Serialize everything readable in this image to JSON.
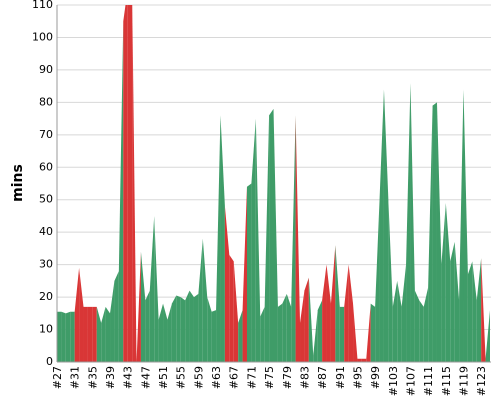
{
  "chart_data": {
    "type": "area",
    "ylabel": "mins",
    "categories": [
      "#27",
      null,
      null,
      null,
      "#31",
      null,
      null,
      null,
      "#35",
      null,
      null,
      null,
      "#39",
      null,
      null,
      null,
      "#43",
      null,
      null,
      null,
      "#47",
      null,
      null,
      null,
      "#51",
      null,
      null,
      null,
      "#55",
      null,
      null,
      null,
      "#59",
      null,
      null,
      null,
      "#63",
      null,
      null,
      null,
      "#67",
      null,
      null,
      null,
      "#71",
      null,
      null,
      null,
      "#75",
      null,
      null,
      null,
      "#79",
      null,
      null,
      null,
      "#83",
      null,
      null,
      null,
      "#87",
      null,
      null,
      null,
      "#91",
      null,
      null,
      null,
      "#95",
      null,
      null,
      null,
      "#99",
      null,
      null,
      null,
      "#103",
      null,
      null,
      null,
      "#107",
      null,
      null,
      null,
      "#111",
      null,
      null,
      null,
      "#115",
      null,
      null,
      null,
      "#119",
      null,
      null,
      null,
      "#123",
      null,
      null
    ],
    "values": [
      15.5,
      15.5,
      15,
      15.5,
      15.5,
      29,
      17,
      17,
      17,
      17,
      12,
      17,
      15,
      25,
      28,
      105,
      115,
      115,
      0,
      34,
      19,
      22,
      45,
      13,
      18,
      13,
      18,
      20.5,
      20,
      19,
      22,
      20,
      21,
      38,
      20,
      15.5,
      16,
      76,
      48,
      33,
      31,
      12,
      16,
      54,
      55,
      75,
      14,
      17,
      76,
      78,
      17,
      18,
      21,
      17,
      76,
      12,
      22,
      26,
      2,
      16,
      19,
      30,
      18,
      36,
      17,
      17,
      30,
      18,
      1,
      1,
      1,
      18,
      17,
      50,
      84,
      50,
      17,
      25,
      17,
      30,
      86,
      22,
      19,
      17,
      23,
      79,
      80,
      30,
      49,
      31,
      37,
      19,
      84,
      27,
      31,
      19,
      32,
      1,
      16
    ],
    "colors": [
      "#3f9c68",
      "#3f9c68",
      "#3f9c68",
      "#3f9c68",
      "#3f9c68",
      "#d93636",
      "#d93636",
      "#d93636",
      "#d93636",
      "#d93636",
      "#3f9c68",
      "#3f9c68",
      "#3f9c68",
      "#3f9c68",
      "#3f9c68",
      "#3f9c68",
      "#d93636",
      "#d93636",
      "#d93636",
      "#d93636",
      "#3f9c68",
      "#3f9c68",
      "#3f9c68",
      "#3f9c68",
      "#3f9c68",
      "#3f9c68",
      "#3f9c68",
      "#3f9c68",
      "#3f9c68",
      "#3f9c68",
      "#3f9c68",
      "#3f9c68",
      "#3f9c68",
      "#3f9c68",
      "#3f9c68",
      "#3f9c68",
      "#3f9c68",
      "#3f9c68",
      "#3f9c68",
      "#d93636",
      "#d93636",
      "#d93636",
      "#3f9c68",
      "#d93636",
      "#3f9c68",
      "#3f9c68",
      "#3f9c68",
      "#3f9c68",
      "#3f9c68",
      "#3f9c68",
      "#3f9c68",
      "#3f9c68",
      "#3f9c68",
      "#3f9c68",
      "#3f9c68",
      "#d93636",
      "#d93636",
      "#d93636",
      "#3f9c68",
      "#3f9c68",
      "#3f9c68",
      "#d93636",
      "#d93636",
      "#d93636",
      "#3f9c68",
      "#3f9c68",
      "#d93636",
      "#d93636",
      "#d93636",
      "#d93636",
      "#d93636",
      "#d93636",
      "#3f9c68",
      "#3f9c68",
      "#3f9c68",
      "#3f9c68",
      "#3f9c68",
      "#3f9c68",
      "#3f9c68",
      "#3f9c68",
      "#3f9c68",
      "#3f9c68",
      "#3f9c68",
      "#3f9c68",
      "#3f9c68",
      "#3f9c68",
      "#3f9c68",
      "#3f9c68",
      "#3f9c68",
      "#3f9c68",
      "#3f9c68",
      "#3f9c68",
      "#3f9c68",
      "#3f9c68",
      "#3f9c68",
      "#3f9c68",
      "#3f9c68",
      "#d93636",
      "#3f9c68"
    ],
    "ylim": [
      0,
      110
    ],
    "yticks": [
      0,
      10,
      20,
      30,
      40,
      50,
      60,
      70,
      80,
      90,
      100,
      110
    ],
    "grid": true
  }
}
